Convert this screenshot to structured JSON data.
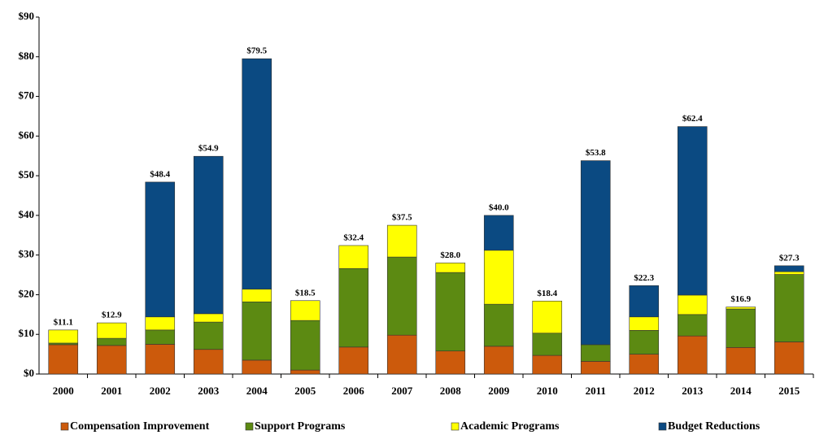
{
  "chart_data": {
    "type": "stacked_bar",
    "categories": [
      "2000",
      "2001",
      "2002",
      "2003",
      "2004",
      "2005",
      "2006",
      "2007",
      "2008",
      "2009",
      "2010",
      "2011",
      "2012",
      "2013",
      "2014",
      "2015"
    ],
    "series": [
      {
        "name": "Compensation Improvement",
        "color": "#cc5a0c",
        "values": [
          7.4,
          7.2,
          7.5,
          6.2,
          3.5,
          1.0,
          6.8,
          9.8,
          5.8,
          7.0,
          4.7,
          3.2,
          5.0,
          9.6,
          6.7,
          8.1
        ]
      },
      {
        "name": "Support Programs",
        "color": "#5c8a12",
        "values": [
          0.4,
          1.8,
          3.6,
          6.9,
          14.7,
          12.5,
          19.8,
          19.7,
          19.8,
          10.6,
          5.6,
          4.2,
          6.0,
          5.4,
          9.7,
          17.0
        ]
      },
      {
        "name": "Academic Programs",
        "color": "#ffff00",
        "values": [
          3.3,
          3.9,
          3.3,
          2.1,
          3.2,
          5.0,
          5.8,
          8.0,
          2.4,
          13.6,
          8.1,
          0,
          3.4,
          4.9,
          0.5,
          0.7
        ]
      },
      {
        "name": "Budget Reductions",
        "color": "#0b4a82",
        "values": [
          0,
          0,
          34.0,
          39.7,
          58.1,
          0,
          0,
          0,
          0,
          8.8,
          0,
          46.4,
          7.9,
          42.5,
          0,
          1.5
        ]
      }
    ],
    "totals": [
      11.1,
      12.9,
      48.4,
      54.9,
      79.5,
      18.5,
      32.4,
      37.5,
      28.0,
      40.0,
      18.4,
      53.8,
      22.3,
      62.4,
      16.9,
      27.3
    ],
    "total_labels": [
      "$11.1",
      "$12.9",
      "$48.4",
      "$54.9",
      "$79.5",
      "$18.5",
      "$32.4",
      "$37.5",
      "$28.0",
      "$40.0",
      "$18.4",
      "$53.8",
      "$22.3",
      "$62.4",
      "$16.9",
      "$27.3"
    ],
    "ylim": [
      0,
      90
    ],
    "yticks": [
      {
        "value": 0,
        "label": "$0"
      },
      {
        "value": 10,
        "label": "$10"
      },
      {
        "value": 20,
        "label": "$20"
      },
      {
        "value": 30,
        "label": "$30"
      },
      {
        "value": 40,
        "label": "$40"
      },
      {
        "value": 50,
        "label": "$50"
      },
      {
        "value": 60,
        "label": "$60"
      },
      {
        "value": 70,
        "label": "$70"
      },
      {
        "value": 80,
        "label": "$80"
      },
      {
        "value": 90,
        "label": "$90"
      }
    ],
    "legend": "bottom"
  }
}
